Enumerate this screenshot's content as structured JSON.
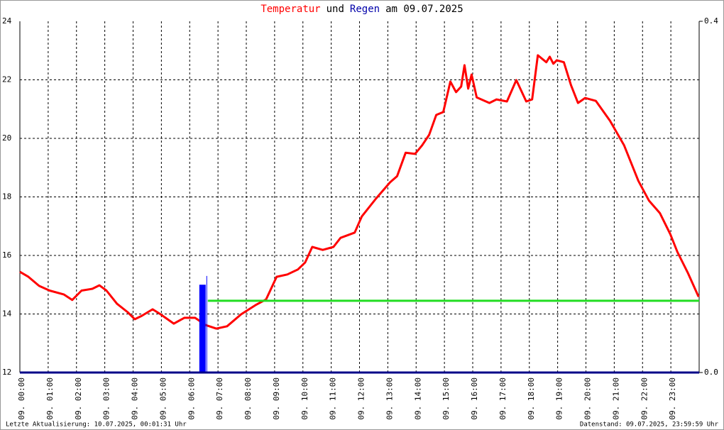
{
  "chart_data": {
    "type": "line",
    "title_parts": [
      {
        "text": "Temperatur",
        "color": "#ff0000"
      },
      {
        "text": "und",
        "color": "#000000"
      },
      {
        "text": "Regen",
        "color": "#0000aa"
      },
      {
        "text": "am 09.07.2025",
        "color": "#000000"
      }
    ],
    "annotations": [
      "Letzte Aktualisierung: 10.07.2025, 00:01:31 Uhr",
      "Datenstand: 09.07.2025, 23:59:59 Uhr"
    ],
    "xlim": [
      0,
      24
    ],
    "xticks": [
      {
        "value": 0,
        "label": "09. 00:00"
      },
      {
        "value": 1,
        "label": "09. 01:00"
      },
      {
        "value": 2,
        "label": "09. 02:00"
      },
      {
        "value": 3,
        "label": "09. 03:00"
      },
      {
        "value": 4,
        "label": "09. 04:00"
      },
      {
        "value": 5,
        "label": "09. 05:00"
      },
      {
        "value": 6,
        "label": "09. 06:00"
      },
      {
        "value": 7,
        "label": "09. 07:00"
      },
      {
        "value": 8,
        "label": "09. 08:00"
      },
      {
        "value": 9,
        "label": "09. 09:00"
      },
      {
        "value": 10,
        "label": "09. 10:00"
      },
      {
        "value": 11,
        "label": "09. 11:00"
      },
      {
        "value": 12,
        "label": "09. 12:00"
      },
      {
        "value": 13,
        "label": "09. 13:00"
      },
      {
        "value": 14,
        "label": "09. 14:00"
      },
      {
        "value": 15,
        "label": "09. 15:00"
      },
      {
        "value": 16,
        "label": "09. 16:00"
      },
      {
        "value": 17,
        "label": "09. 17:00"
      },
      {
        "value": 18,
        "label": "09. 18:00"
      },
      {
        "value": 19,
        "label": "09. 19:00"
      },
      {
        "value": 20,
        "label": "09. 20:00"
      },
      {
        "value": 21,
        "label": "09. 21:00"
      },
      {
        "value": 22,
        "label": "09. 22:00"
      },
      {
        "value": 23,
        "label": "09. 23:00"
      }
    ],
    "ylim": [
      12,
      24
    ],
    "yticks": [
      12,
      14,
      16,
      18,
      20,
      22,
      24
    ],
    "y2lim": [
      0,
      0.4
    ],
    "y2ticks": [
      {
        "value": 0,
        "label": "0.0"
      },
      {
        "value": 0.4,
        "label": "0.4"
      }
    ],
    "grid": true,
    "series": [
      {
        "type": "line",
        "color": "#ff0000",
        "x": [
          0,
          0.3,
          0.68,
          1.05,
          1.55,
          1.85,
          2.18,
          2.56,
          2.81,
          3.06,
          3.43,
          3.81,
          4.06,
          4.31,
          4.69,
          4.94,
          5.44,
          5.81,
          6.19,
          6.57,
          6.94,
          7.32,
          7.82,
          8.32,
          8.7,
          9.07,
          9.45,
          9.82,
          10.08,
          10.33,
          10.7,
          11.08,
          11.33,
          11.83,
          12.08,
          12.58,
          13.08,
          13.33,
          13.63,
          13.96,
          14.21,
          14.46,
          14.71,
          14.96,
          15.21,
          15.41,
          15.59,
          15.71,
          15.84,
          15.96,
          16.14,
          16.59,
          16.84,
          17.21,
          17.54,
          17.89,
          18.1,
          18.3,
          18.6,
          18.72,
          18.85,
          18.97,
          19.22,
          19.47,
          19.72,
          19.97,
          20.35,
          20.85,
          21.35,
          21.85,
          22.23,
          22.61,
          22.98,
          23.23,
          23.61,
          23.98
        ],
        "values": [
          15.44,
          15.27,
          14.96,
          14.8,
          14.67,
          14.48,
          14.8,
          14.86,
          14.98,
          14.8,
          14.35,
          14.06,
          13.82,
          13.94,
          14.16,
          14.01,
          13.67,
          13.87,
          13.87,
          13.62,
          13.5,
          13.58,
          13.99,
          14.3,
          14.5,
          15.27,
          15.35,
          15.52,
          15.76,
          16.29,
          16.19,
          16.29,
          16.6,
          16.78,
          17.33,
          17.94,
          18.5,
          18.71,
          19.51,
          19.47,
          19.76,
          20.12,
          20.8,
          20.9,
          21.94,
          21.58,
          21.77,
          22.5,
          21.7,
          22.18,
          21.4,
          21.21,
          21.33,
          21.26,
          21.99,
          21.26,
          21.33,
          22.84,
          22.6,
          22.79,
          22.55,
          22.67,
          22.6,
          21.82,
          21.21,
          21.38,
          21.28,
          20.6,
          19.76,
          18.55,
          17.87,
          17.45,
          16.73,
          16.12,
          15.39,
          14.59
        ]
      },
      {
        "type": "line",
        "color": "#22dd22",
        "x": [
          6.64,
          24
        ],
        "values": [
          14.45,
          14.45
        ]
      },
      {
        "type": "bar",
        "axis": "y2",
        "color": "#0000ff",
        "bins": [
          6.34,
          6.59,
          6.64
        ],
        "values": [
          0.1,
          0.11
        ]
      }
    ]
  }
}
